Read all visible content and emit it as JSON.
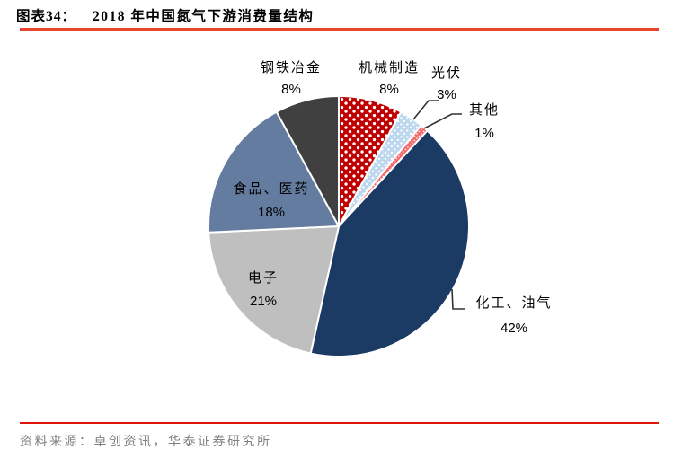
{
  "header": {
    "figure_label": "图表34：",
    "title": "2018 年中国氮气下游消费量结构"
  },
  "footer": {
    "source_text": "资料来源：卓创资讯，华泰证券研究所"
  },
  "colors": {
    "top_rule": "#E8442F",
    "bottom_rule": "#E01505",
    "leader_line": "#333333",
    "slice_border": "#FFFFFF",
    "footer_text": "#7F7F7F"
  },
  "chart_data": {
    "type": "pie",
    "title": "2018 年中国氮气下游消费量结构",
    "start_angle": "12 o'clock",
    "direction": "clockwise",
    "legend_position": "none (direct labels)",
    "slices": [
      {
        "id": "machinery-manufacturing",
        "label": "机械制造",
        "pct_label": "8%",
        "value": 8,
        "color": "#C00000",
        "pattern": "dots-large"
      },
      {
        "id": "photovoltaic",
        "label": "光伏",
        "pct_label": "3%",
        "value": 3,
        "color": "#BDD7EE",
        "pattern": "dots-medium"
      },
      {
        "id": "others",
        "label": "其他",
        "pct_label": "1%",
        "value": 1,
        "color": "#F4696B",
        "pattern": "dots-small"
      },
      {
        "id": "chemical-oil-gas",
        "label": "化工、油气",
        "pct_label": "42%",
        "value": 42,
        "color": "#1B3A64",
        "pattern": null
      },
      {
        "id": "electronics",
        "label": "电子",
        "pct_label": "21%",
        "value": 21,
        "color": "#BFBFBF",
        "pattern": null
      },
      {
        "id": "food-pharmaceutical",
        "label": "食品、医药",
        "pct_label": "18%",
        "value": 18,
        "color": "#647CA0",
        "pattern": null
      },
      {
        "id": "steel-metallurgy",
        "label": "钢铁冶金",
        "pct_label": "8%",
        "value": 8,
        "color": "#404040",
        "pattern": null
      }
    ]
  }
}
